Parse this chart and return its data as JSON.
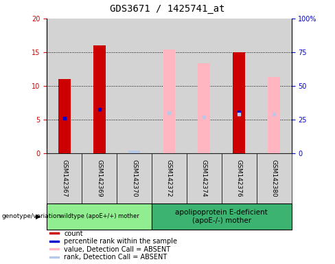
{
  "title": "GDS3671 / 1425741_at",
  "samples": [
    "GSM142367",
    "GSM142369",
    "GSM142370",
    "GSM142372",
    "GSM142374",
    "GSM142376",
    "GSM142380"
  ],
  "count_values": [
    11,
    16,
    0,
    0,
    0,
    15,
    0
  ],
  "percentile_rank": [
    5.2,
    6.5,
    0,
    0,
    0,
    6.1,
    0
  ],
  "absent_value": [
    0,
    0,
    0,
    15.4,
    13.3,
    0,
    11.3
  ],
  "absent_rank_bar": [
    0,
    0,
    0.4,
    0,
    0,
    0,
    0
  ],
  "absent_rank_dot": [
    0,
    0,
    0,
    6.0,
    5.4,
    5.8,
    5.8
  ],
  "group1_n": 3,
  "group2_n": 4,
  "group1_label": "wildtype (apoE+/+) mother",
  "group2_label": "apolipoprotein E-deficient\n(apoE-/-) mother",
  "group1_color": "#90EE90",
  "group2_color": "#3CB371",
  "bar_bg_color": "#D3D3D3",
  "plot_bg_color": "#FFFFFF",
  "ylim_left": [
    0,
    20
  ],
  "ylim_right": [
    0,
    100
  ],
  "yticks_left": [
    0,
    5,
    10,
    15,
    20
  ],
  "yticks_right": [
    0,
    25,
    50,
    75,
    100
  ],
  "ytick_right_labels": [
    "0",
    "25",
    "50",
    "75",
    "100%"
  ],
  "count_color": "#CC0000",
  "rank_color": "#0000CC",
  "absent_val_color": "#FFB6C1",
  "absent_rank_color": "#B8C8E8",
  "ylabel_left_color": "#CC0000",
  "ylabel_right_color": "#0000CC",
  "title_fontsize": 10,
  "tick_fontsize": 7,
  "legend_fontsize": 7,
  "bar_width": 0.35
}
